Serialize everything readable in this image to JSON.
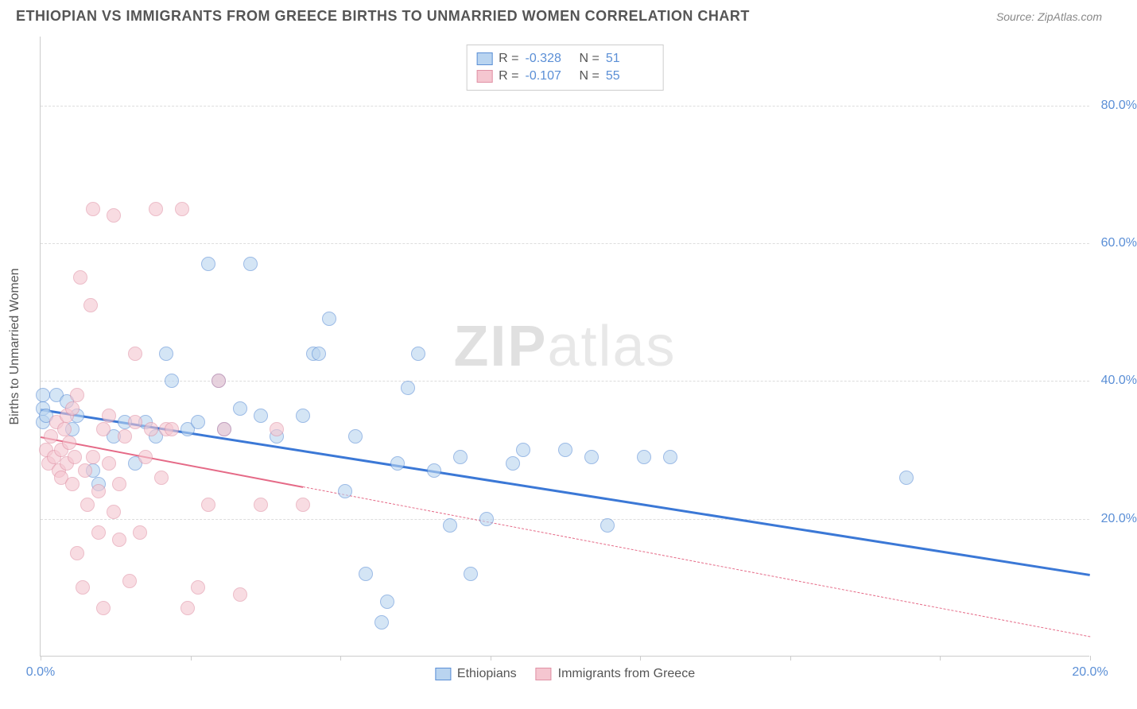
{
  "header": {
    "title": "ETHIOPIAN VS IMMIGRANTS FROM GREECE BIRTHS TO UNMARRIED WOMEN CORRELATION CHART",
    "source": "Source: ZipAtlas.com"
  },
  "watermark": {
    "part1": "ZIP",
    "part2": "atlas"
  },
  "chart": {
    "type": "scatter",
    "y_axis_label": "Births to Unmarried Women",
    "background_color": "#ffffff",
    "grid_color": "#dddddd",
    "axis_color": "#cccccc",
    "label_color": "#5b8fd6",
    "text_color": "#555555",
    "xlim": [
      0,
      20
    ],
    "ylim": [
      0,
      90
    ],
    "x_ticks": [
      0,
      2.86,
      5.71,
      8.57,
      11.43,
      14.29,
      17.14,
      20
    ],
    "x_tick_labels": [
      "0.0%",
      "",
      "",
      "",
      "",
      "",
      "",
      "20.0%"
    ],
    "y_ticks": [
      20,
      40,
      60,
      80
    ],
    "y_tick_labels": [
      "20.0%",
      "40.0%",
      "60.0%",
      "80.0%"
    ],
    "marker_radius": 9,
    "marker_stroke_width": 1.5,
    "series": [
      {
        "name": "Ethiopians",
        "fill_color": "#b9d4f0",
        "stroke_color": "#5b8fd6",
        "fill_opacity": 0.6,
        "R": "-0.328",
        "N": "51",
        "trend": {
          "x1": 0,
          "y1": 36,
          "x2": 20,
          "y2": 12,
          "solid_end_x": 20,
          "color": "#3b78d6",
          "width": 2.5
        },
        "points": [
          [
            0.05,
            36
          ],
          [
            0.3,
            38
          ],
          [
            0.5,
            37
          ],
          [
            0.6,
            33
          ],
          [
            0.7,
            35
          ],
          [
            1.0,
            27
          ],
          [
            1.1,
            25
          ],
          [
            1.4,
            32
          ],
          [
            1.6,
            34
          ],
          [
            1.8,
            28
          ],
          [
            2.0,
            34
          ],
          [
            2.2,
            32
          ],
          [
            2.4,
            44
          ],
          [
            2.5,
            40
          ],
          [
            2.8,
            33
          ],
          [
            3.0,
            34
          ],
          [
            3.2,
            57
          ],
          [
            3.4,
            40
          ],
          [
            3.5,
            33
          ],
          [
            3.8,
            36
          ],
          [
            4.0,
            57
          ],
          [
            4.2,
            35
          ],
          [
            4.5,
            32
          ],
          [
            5.0,
            35
          ],
          [
            5.2,
            44
          ],
          [
            5.3,
            44
          ],
          [
            5.5,
            49
          ],
          [
            5.8,
            24
          ],
          [
            6.0,
            32
          ],
          [
            6.2,
            12
          ],
          [
            6.5,
            5
          ],
          [
            6.6,
            8
          ],
          [
            6.8,
            28
          ],
          [
            7.0,
            39
          ],
          [
            7.2,
            44
          ],
          [
            7.5,
            27
          ],
          [
            7.8,
            19
          ],
          [
            8.0,
            29
          ],
          [
            8.2,
            12
          ],
          [
            8.5,
            20
          ],
          [
            9.0,
            28
          ],
          [
            9.2,
            30
          ],
          [
            10.0,
            30
          ],
          [
            10.5,
            29
          ],
          [
            10.8,
            19
          ],
          [
            11.5,
            29
          ],
          [
            12.0,
            29
          ],
          [
            16.5,
            26
          ],
          [
            0.05,
            38
          ],
          [
            0.05,
            34
          ],
          [
            0.1,
            35
          ]
        ]
      },
      {
        "name": "Immigrants from Greece",
        "fill_color": "#f5c6d0",
        "stroke_color": "#e091a5",
        "fill_opacity": 0.6,
        "R": "-0.107",
        "N": "55",
        "trend": {
          "x1": 0,
          "y1": 32,
          "x2": 20,
          "y2": 3,
          "solid_end_x": 5,
          "color": "#e56a87",
          "width": 2
        },
        "points": [
          [
            0.1,
            30
          ],
          [
            0.15,
            28
          ],
          [
            0.2,
            32
          ],
          [
            0.25,
            29
          ],
          [
            0.3,
            34
          ],
          [
            0.35,
            27
          ],
          [
            0.4,
            26
          ],
          [
            0.4,
            30
          ],
          [
            0.45,
            33
          ],
          [
            0.5,
            35
          ],
          [
            0.5,
            28
          ],
          [
            0.55,
            31
          ],
          [
            0.6,
            36
          ],
          [
            0.6,
            25
          ],
          [
            0.65,
            29
          ],
          [
            0.7,
            38
          ],
          [
            0.7,
            15
          ],
          [
            0.75,
            55
          ],
          [
            0.8,
            10
          ],
          [
            0.85,
            27
          ],
          [
            0.9,
            22
          ],
          [
            0.95,
            51
          ],
          [
            1.0,
            65
          ],
          [
            1.0,
            29
          ],
          [
            1.1,
            18
          ],
          [
            1.1,
            24
          ],
          [
            1.2,
            7
          ],
          [
            1.2,
            33
          ],
          [
            1.3,
            28
          ],
          [
            1.3,
            35
          ],
          [
            1.4,
            21
          ],
          [
            1.4,
            64
          ],
          [
            1.5,
            25
          ],
          [
            1.5,
            17
          ],
          [
            1.6,
            32
          ],
          [
            1.7,
            11
          ],
          [
            1.8,
            34
          ],
          [
            1.8,
            44
          ],
          [
            1.9,
            18
          ],
          [
            2.0,
            29
          ],
          [
            2.1,
            33
          ],
          [
            2.2,
            65
          ],
          [
            2.3,
            26
          ],
          [
            2.4,
            33
          ],
          [
            2.5,
            33
          ],
          [
            2.7,
            65
          ],
          [
            2.8,
            7
          ],
          [
            3.0,
            10
          ],
          [
            3.2,
            22
          ],
          [
            3.4,
            40
          ],
          [
            3.5,
            33
          ],
          [
            3.8,
            9
          ],
          [
            4.2,
            22
          ],
          [
            4.5,
            33
          ],
          [
            5.0,
            22
          ]
        ]
      }
    ],
    "bottom_legend": [
      {
        "label": "Ethiopians",
        "fill": "#b9d4f0",
        "stroke": "#5b8fd6"
      },
      {
        "label": "Immigrants from Greece",
        "fill": "#f5c6d0",
        "stroke": "#e091a5"
      }
    ]
  }
}
